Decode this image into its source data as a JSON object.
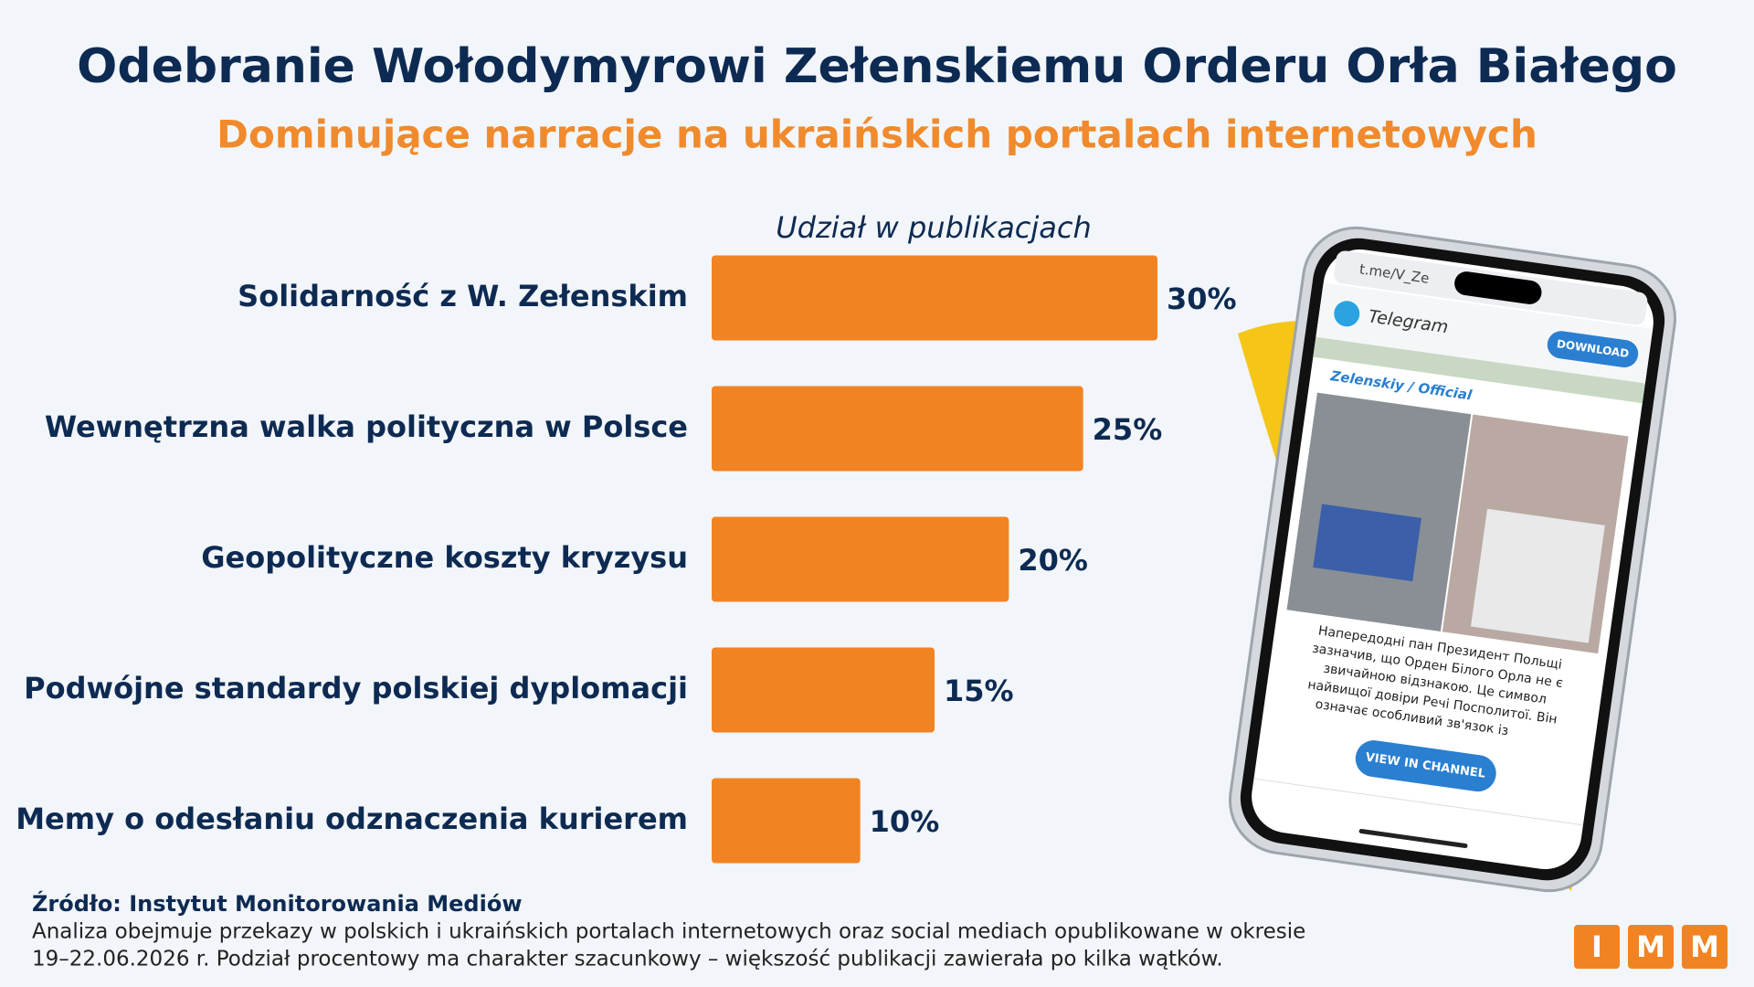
{
  "chart_data": {
    "type": "bar",
    "orientation": "horizontal",
    "title": "Odebranie Wołodymyrowi Zełenskiemu Orderu Orła Białego",
    "subtitle": "Dominujące narracje na ukraińskich portalach internetowych",
    "value_axis_label": "Udział w publikacjach",
    "categories": [
      "Solidarność z W. Zełenskim",
      "Wewnętrzna walka polityczna w Polsce",
      "Geopolityczne koszty kryzysu",
      "Podwójne standardy polskiej dyplomacji",
      "Memy o odesłaniu odznaczenia kurierem"
    ],
    "values": [
      30,
      25,
      20,
      15,
      10
    ],
    "value_labels": [
      "30%",
      "25%",
      "20%",
      "15%",
      "10%"
    ],
    "color": "#f28322"
  },
  "source": {
    "label": "Źródło: Instytut Monitorowania Mediów",
    "note_lines": [
      "Analiza obejmuje przekazy w polskich i ukraińskich portalach internetowych oraz social mediach opublikowane w okresie",
      "19–22.06.2026 r. Podział procentowy ma charakter szacunkowy – większość publikacji zawierała po kilka wątków."
    ]
  },
  "logo": [
    "I",
    "M",
    "M"
  ],
  "phone": {
    "url": "t.me/V_Ze",
    "app": "Telegram",
    "download": "DOWNLOAD",
    "channel": "Zelenskiy / Official",
    "post_lines": [
      "Напередодні пан Президент Польщі",
      "зазначив, що Орден Білого Орла не є",
      "звичайною відзнакою. Це символ",
      "найвищої довіри Речі Посполитої. Він",
      "означає особливий зв'язок із"
    ],
    "button": "VIEW IN CHANNEL"
  }
}
